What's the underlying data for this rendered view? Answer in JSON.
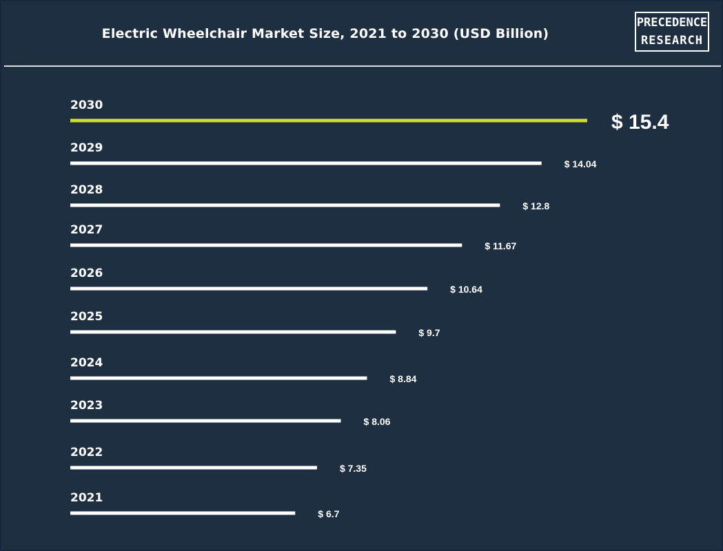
{
  "title": "Electric Wheelchair Market Size, 2021 to 2030 (USD Billion)",
  "logo": {
    "line1": "PRECEDENCE",
    "line2": "RESEARCH"
  },
  "colors": {
    "background": "#1f2f42",
    "bar": "#ffffff",
    "highlight": "#cfe02a"
  },
  "chart_data": {
    "type": "bar",
    "orientation": "horizontal",
    "title": "Electric Wheelchair Market Size, 2021 to 2030 (USD Billion)",
    "categories": [
      "2030",
      "2029",
      "2028",
      "2027",
      "2026",
      "2025",
      "2024",
      "2023",
      "2022",
      "2021"
    ],
    "values": [
      15.4,
      14.04,
      12.8,
      11.67,
      10.64,
      9.7,
      8.84,
      8.06,
      7.35,
      6.7
    ],
    "labels": [
      "$ 15.4",
      "$ 14.04",
      "$ 12.8",
      "$ 11.67",
      "$ 10.64",
      "$ 9.7",
      "$ 8.84",
      "$ 8.06",
      "$ 7.35",
      "$ 6.7"
    ],
    "highlight_category": "2030",
    "grid": false,
    "legend": false
  }
}
